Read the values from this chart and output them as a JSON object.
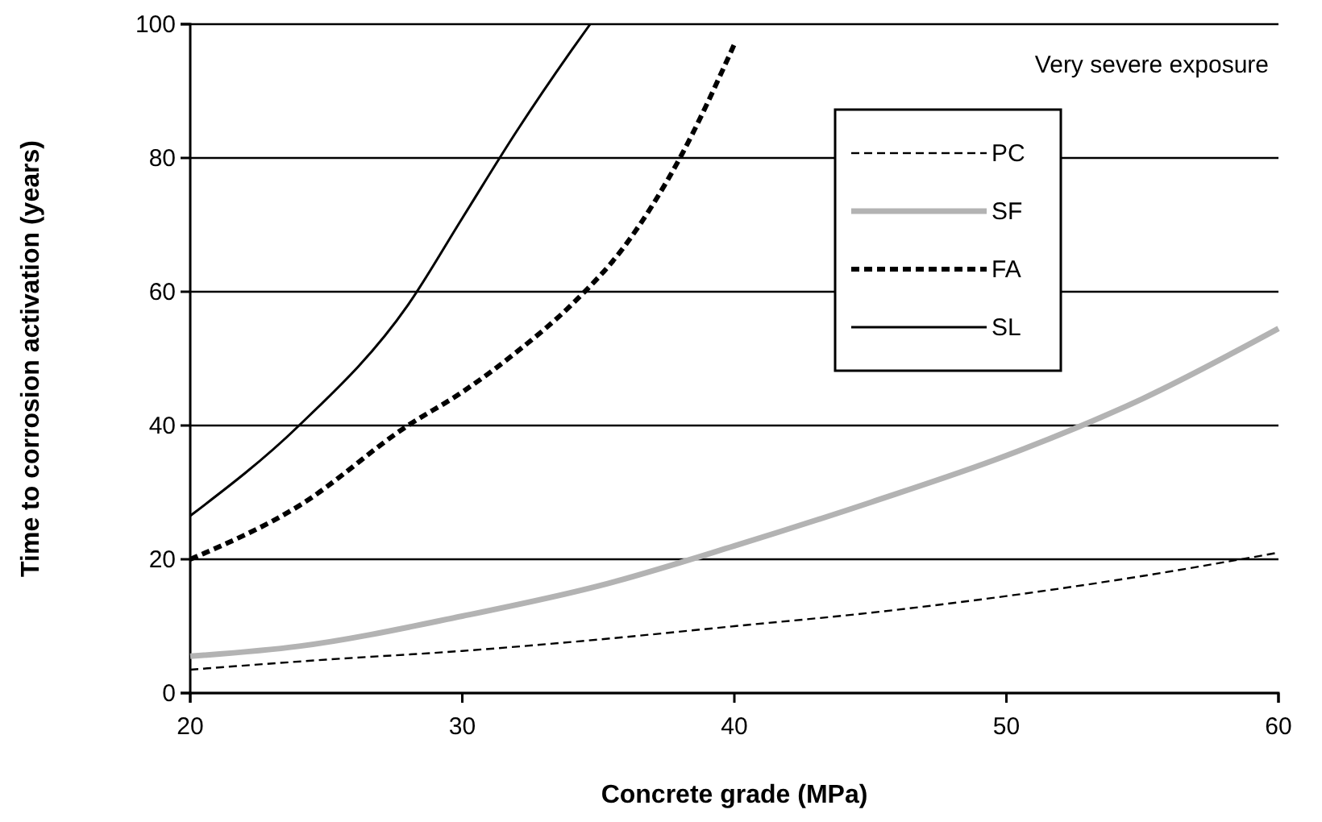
{
  "chart_data": {
    "type": "line",
    "xlabel": "Concrete grade (MPa)",
    "ylabel": "Time to corrosion activation (years)",
    "xlim": [
      20,
      60
    ],
    "xticks": [
      20,
      30,
      40,
      50,
      60
    ],
    "ylim": [
      0,
      100
    ],
    "yticks": [
      0,
      20,
      40,
      60,
      80,
      100
    ],
    "grid": "y",
    "legend": "top right",
    "marker": "none",
    "annotations": [
      "Very severe exposure"
    ],
    "series": [
      {
        "name": "PC",
        "color": "#000000",
        "line_style": "dashed",
        "x": [
          20,
          25,
          30,
          35,
          40,
          45,
          50,
          55,
          60
        ],
        "values": [
          3.5,
          5,
          6.3,
          8,
          10,
          12,
          14.5,
          17.5,
          21
        ]
      },
      {
        "name": "SF",
        "color": "#b3b3b3",
        "line_style": "solid",
        "x": [
          20,
          24,
          30,
          35,
          40,
          45,
          50,
          55,
          60
        ],
        "values": [
          5.5,
          7,
          11.5,
          16,
          22,
          28.5,
          35.5,
          44,
          54.5
        ]
      },
      {
        "name": "FA",
        "color": "#000000",
        "line_style": "dashed",
        "x": [
          20,
          24,
          28,
          30,
          32,
          34,
          36,
          38,
          40
        ],
        "values": [
          20,
          28,
          40,
          45,
          51,
          58,
          67,
          80,
          97
        ]
      },
      {
        "name": "SL",
        "color": "#000000",
        "line_style": "solid",
        "x": [
          20,
          24,
          28,
          30,
          32,
          34,
          34.7
        ],
        "values": [
          26.5,
          40,
          58,
          71,
          84,
          96,
          100
        ]
      }
    ]
  }
}
